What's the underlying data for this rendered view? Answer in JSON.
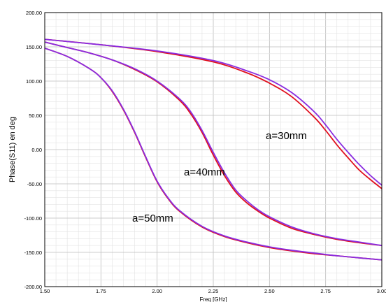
{
  "chart_data": {
    "type": "line",
    "title": "",
    "xlabel": "Freq [GHz]",
    "ylabel": "Phase(S11) en deg",
    "xlim": [
      1.5,
      3.0
    ],
    "ylim": [
      -200,
      200
    ],
    "x_tick_labels": [
      "1.50",
      "1.75",
      "2.00",
      "2.25",
      "2.50",
      "2.75",
      "3.00"
    ],
    "y_tick_labels": [
      "200.00",
      "150.00",
      "100.00",
      "50.00",
      "0.00",
      "-50.00",
      "-100.00",
      "-150.00",
      "-200.00"
    ],
    "grid": true,
    "colors": {
      "red": "#e0101e",
      "purple": "#8a2ce0",
      "grid": "#cccccc",
      "axis": "#000000"
    },
    "annotations": [
      "a=30mm",
      "a=40mm",
      "a=50mm"
    ],
    "series": [
      {
        "color": "red",
        "x": [
          1.5,
          1.75,
          2.0,
          2.25,
          2.4,
          2.5,
          2.6,
          2.7,
          2.75,
          2.8,
          2.85,
          2.9,
          2.95,
          3.0
        ],
        "y": [
          161,
          153,
          143,
          128,
          112,
          97,
          77,
          47,
          28,
          7,
          -12,
          -30,
          -44,
          -57
        ]
      },
      {
        "color": "purple",
        "x": [
          1.5,
          1.75,
          2.0,
          2.25,
          2.4,
          2.5,
          2.6,
          2.7,
          2.75,
          2.8,
          2.85,
          2.9,
          2.95,
          3.0
        ],
        "y": [
          161,
          153,
          144,
          130,
          115,
          102,
          83,
          55,
          36,
          15,
          -4,
          -22,
          -38,
          -52
        ]
      },
      {
        "color": "red",
        "x": [
          1.5,
          1.6,
          1.7,
          1.8,
          1.9,
          2.0,
          2.1,
          2.15,
          2.2,
          2.25,
          2.3,
          2.35,
          2.4,
          2.45,
          2.5,
          2.6,
          2.7,
          2.8,
          2.9,
          3.0
        ],
        "y": [
          157,
          149,
          141,
          131,
          117,
          99,
          72,
          52,
          25,
          -8,
          -38,
          -62,
          -78,
          -90,
          -100,
          -115,
          -124,
          -131,
          -136,
          -140
        ]
      },
      {
        "color": "purple",
        "x": [
          1.5,
          1.6,
          1.7,
          1.8,
          1.9,
          2.0,
          2.1,
          2.15,
          2.2,
          2.25,
          2.3,
          2.35,
          2.4,
          2.45,
          2.5,
          2.6,
          2.7,
          2.8,
          2.9,
          3.0
        ],
        "y": [
          157,
          149,
          141,
          131,
          118,
          100,
          74,
          55,
          28,
          -4,
          -34,
          -59,
          -75,
          -88,
          -98,
          -113,
          -123,
          -130,
          -135,
          -140
        ]
      },
      {
        "color": "red",
        "x": [
          1.5,
          1.6,
          1.7,
          1.75,
          1.8,
          1.85,
          1.9,
          1.95,
          2.0,
          2.05,
          2.1,
          2.2,
          2.3,
          2.4,
          2.5,
          2.6,
          2.7,
          2.8,
          2.9,
          3.0
        ],
        "y": [
          148,
          136,
          118,
          105,
          85,
          58,
          25,
          -12,
          -47,
          -72,
          -90,
          -113,
          -127,
          -136,
          -143,
          -148,
          -152,
          -155,
          -158,
          -161
        ]
      },
      {
        "color": "purple",
        "x": [
          1.5,
          1.6,
          1.7,
          1.75,
          1.8,
          1.85,
          1.9,
          1.95,
          2.0,
          2.05,
          2.1,
          2.2,
          2.3,
          2.4,
          2.5,
          2.6,
          2.7,
          2.8,
          2.9,
          3.0
        ],
        "y": [
          148,
          136,
          118,
          105,
          86,
          59,
          26,
          -11,
          -46,
          -71,
          -89,
          -112,
          -126,
          -135,
          -142,
          -147,
          -151,
          -155,
          -158,
          -161
        ]
      }
    ]
  }
}
